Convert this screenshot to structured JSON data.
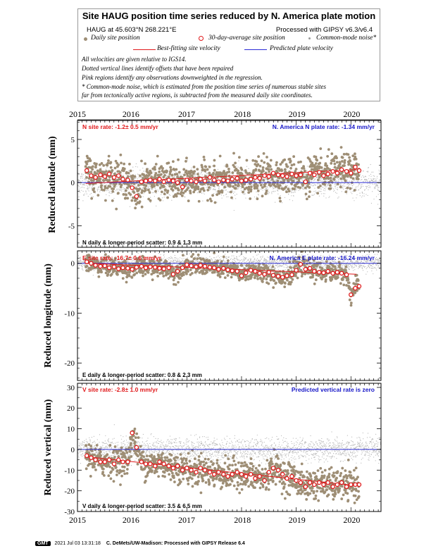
{
  "title": "Site HAUG position time series reduced by N. America plate motion",
  "legend": {
    "station": "HAUG at 45.603°N 268.221°E",
    "processing": "Processed with GIPSY v6.3/v6.4",
    "daily": "Daily site position",
    "avg30": "30-day-average site position",
    "cmn": "Common-mode noise*",
    "bestfit": "Best-fitting site velocity",
    "predicted": "Predicted plate velocity",
    "note1": "All velocities are given relative to IGS14.",
    "note2": "Dotted vertical lines identify offsets that have been repaired",
    "note3": "Pink regions identify any observations downweighted in the regression.",
    "note4": "* Common-mode noise, which is estimated from the position time series of numerous stable sites",
    "note5": "far from tectonically active regions, is subtracted from the measured daily site coordinates."
  },
  "colors": {
    "daily": "#9e8e75",
    "cmn": "#b8b8b8",
    "avg30": "#e0191b",
    "fit": "#e0191b",
    "plate": "#2b2bd6",
    "label_red": "#e0191b",
    "label_blue": "#1818c8"
  },
  "footer": {
    "logo": "GMT",
    "timestamp": "2021 Jul 03 13:31:18",
    "credit": "C. DeMets/UW-Madison: Processed with GIPSY Release 6.4"
  },
  "chart_data": [
    {
      "type": "scatter",
      "component": "N",
      "ylabel": "Reduced latitude (mm)",
      "x_ticks": [
        "2015",
        "2016",
        "2017",
        "2018",
        "2019",
        "2020"
      ],
      "xlim": [
        2015.0,
        2020.55
      ],
      "ylim": [
        -7.5,
        7.2
      ],
      "y_ticks": [
        5,
        0,
        -5
      ],
      "rate_label": "N site rate:  -1.2± 0.5 mm/yr",
      "plate_label": "N. America N plate rate:  -1.34 mm/yr",
      "scatter_label": "N daily & longer-period scatter:   0.9 &   1.3 mm",
      "fit_line": {
        "x": [
          2015.15,
          2020.1
        ],
        "y": [
          -0.1,
          1.5
        ]
      },
      "plate_line": 0,
      "avg30": {
        "x": [
          2015.17,
          2015.25,
          2015.33,
          2015.42,
          2015.5,
          2015.58,
          2015.67,
          2015.75,
          2015.83,
          2015.92,
          2016.0,
          2016.08,
          2016.17,
          2016.25,
          2016.33,
          2016.42,
          2016.5,
          2016.58,
          2016.67,
          2016.75,
          2016.83,
          2016.92,
          2017.0,
          2017.08,
          2017.17,
          2017.25,
          2017.33,
          2017.42,
          2017.5,
          2017.58,
          2017.67,
          2017.75,
          2017.83,
          2017.92,
          2018.0,
          2018.08,
          2018.17,
          2018.25,
          2018.33,
          2018.42,
          2018.5,
          2018.58,
          2018.67,
          2018.75,
          2018.83,
          2018.92,
          2019.0,
          2019.08,
          2019.17,
          2019.25,
          2019.33,
          2019.42,
          2019.5,
          2019.58,
          2019.67,
          2019.75,
          2019.83,
          2019.92,
          2020.0,
          2020.08,
          2020.15
        ],
        "y": [
          1.4,
          0.8,
          0.6,
          0.9,
          0.7,
          1.0,
          0.6,
          0.8,
          0.4,
          0.3,
          -0.6,
          -1.6,
          0.1,
          0.2,
          0.3,
          0.2,
          0.4,
          0.1,
          0.3,
          0.2,
          0.0,
          -0.5,
          0.3,
          0.2,
          0.1,
          0.4,
          0.2,
          0.6,
          0.3,
          0.1,
          0.3,
          0.2,
          0.4,
          0.5,
          0.2,
          0.3,
          0.4,
          0.6,
          0.5,
          0.8,
          0.7,
          1.1,
          0.9,
          0.8,
          0.7,
          1.0,
          0.8,
          0.9,
          0.1,
          1.1,
          0.9,
          1.2,
          0.8,
          1.0,
          1.3,
          1.1,
          1.5,
          1.3,
          1.1,
          1.8,
          1.4
        ]
      }
    },
    {
      "type": "scatter",
      "component": "E",
      "ylabel": "Reduced longitude (mm)",
      "x_ticks": [
        "2015",
        "2016",
        "2017",
        "2018",
        "2019",
        "2020"
      ],
      "xlim": [
        2015.0,
        2020.55
      ],
      "ylim": [
        -23.5,
        2.5
      ],
      "y_ticks": [
        0,
        -10,
        -20
      ],
      "rate_label": "E site rate: -16.7± 0.6 mm/yr",
      "plate_label": "N. America E plate rate: -16.24 mm/yr",
      "scatter_label": "E daily & longer-period scatter:   0.8 &   2.3 mm",
      "fit_line": {
        "x": [
          2015.15,
          2020.1
        ],
        "y": [
          0.0,
          -2.2
        ]
      },
      "plate_line": 0,
      "avg30": {
        "x": [
          2015.17,
          2015.25,
          2015.33,
          2015.42,
          2015.5,
          2015.58,
          2015.67,
          2015.75,
          2015.83,
          2015.92,
          2016.0,
          2016.08,
          2016.17,
          2016.25,
          2016.33,
          2016.42,
          2016.5,
          2016.58,
          2016.67,
          2016.75,
          2016.83,
          2016.92,
          2017.0,
          2017.08,
          2017.17,
          2017.25,
          2017.33,
          2017.42,
          2017.5,
          2017.58,
          2017.67,
          2017.75,
          2017.83,
          2017.92,
          2018.0,
          2018.08,
          2018.17,
          2018.25,
          2018.33,
          2018.42,
          2018.5,
          2018.58,
          2018.67,
          2018.75,
          2018.83,
          2018.92,
          2019.0,
          2019.08,
          2019.17,
          2019.25,
          2019.33,
          2019.42,
          2019.5,
          2019.58,
          2019.67,
          2019.75,
          2019.83,
          2019.92,
          2020.0,
          2020.08,
          2020.15
        ],
        "y": [
          0.3,
          0.0,
          -0.4,
          -0.6,
          -0.5,
          -0.9,
          -0.7,
          -1.1,
          -0.9,
          -1.0,
          -1.2,
          -0.8,
          -0.6,
          -0.9,
          -0.7,
          -0.8,
          -1.0,
          -1.1,
          -0.9,
          -2.2,
          -1.6,
          -0.9,
          -0.3,
          -0.5,
          -0.7,
          -0.4,
          -0.6,
          -0.8,
          -0.9,
          -1.2,
          -1.0,
          -1.3,
          -1.5,
          -1.6,
          -2.5,
          -1.9,
          -1.4,
          -1.6,
          -2.0,
          -2.2,
          -1.8,
          -2.4,
          -2.6,
          -2.8,
          -2.5,
          -2.3,
          -1.4,
          -0.2,
          -1.2,
          -1.0,
          -1.6,
          -1.8,
          -1.9,
          -1.6,
          -2.0,
          -1.8,
          -2.0,
          -2.3,
          -6.3,
          -5.0,
          -4.6
        ]
      }
    },
    {
      "type": "scatter",
      "component": "V",
      "ylabel": "Reduced vertical (mm)",
      "x_ticks": [
        "2015",
        "2016",
        "2017",
        "2018",
        "2019",
        "2020"
      ],
      "xlim": [
        2015.0,
        2020.55
      ],
      "ylim": [
        -30,
        32
      ],
      "y_ticks": [
        30,
        20,
        10,
        0,
        -10,
        -20,
        -30
      ],
      "rate_label": "V site rate:  -2.8± 1.0 mm/yr",
      "plate_label": "Predicted vertical rate is zero",
      "scatter_label": "V daily & longer-period scatter:   3.5 &   6.5 mm",
      "fit_line": {
        "x": [
          2015.15,
          2020.1
        ],
        "y": [
          -3.5,
          -17.5
        ]
      },
      "plate_line": 0,
      "avg30": {
        "x": [
          2015.17,
          2015.25,
          2015.33,
          2015.42,
          2015.5,
          2015.58,
          2015.67,
          2015.75,
          2015.83,
          2015.92,
          2016.0,
          2016.08,
          2016.17,
          2016.25,
          2016.33,
          2016.42,
          2016.5,
          2016.58,
          2016.67,
          2016.75,
          2016.83,
          2016.92,
          2017.0,
          2017.08,
          2017.17,
          2017.25,
          2017.33,
          2017.42,
          2017.5,
          2017.58,
          2017.67,
          2017.75,
          2017.83,
          2017.92,
          2018.0,
          2018.08,
          2018.17,
          2018.25,
          2018.33,
          2018.42,
          2018.5,
          2018.58,
          2018.67,
          2018.75,
          2018.83,
          2018.92,
          2019.0,
          2019.08,
          2019.17,
          2019.25,
          2019.33,
          2019.42,
          2019.5,
          2019.58,
          2019.67,
          2019.75,
          2019.83,
          2019.92,
          2020.0,
          2020.08,
          2020.15
        ],
        "y": [
          -3,
          -4,
          -5,
          -6,
          -6,
          -5,
          -7,
          -5,
          -6,
          -6,
          8,
          1,
          -6,
          -7,
          -7,
          -8,
          -6,
          -7,
          -8,
          -9,
          -8,
          -10,
          -9,
          -10,
          -11,
          -9,
          -10,
          -11,
          -12,
          -11,
          -12,
          -13,
          -12,
          -11,
          -12,
          -13,
          -12,
          -14,
          -13,
          -15,
          -11,
          -9,
          -10,
          -12,
          -14,
          -13,
          -15,
          -16,
          -18,
          -16,
          -17,
          -16,
          -17,
          -16,
          -18,
          -17,
          -16,
          -18,
          -17,
          -17,
          -17
        ]
      }
    }
  ]
}
